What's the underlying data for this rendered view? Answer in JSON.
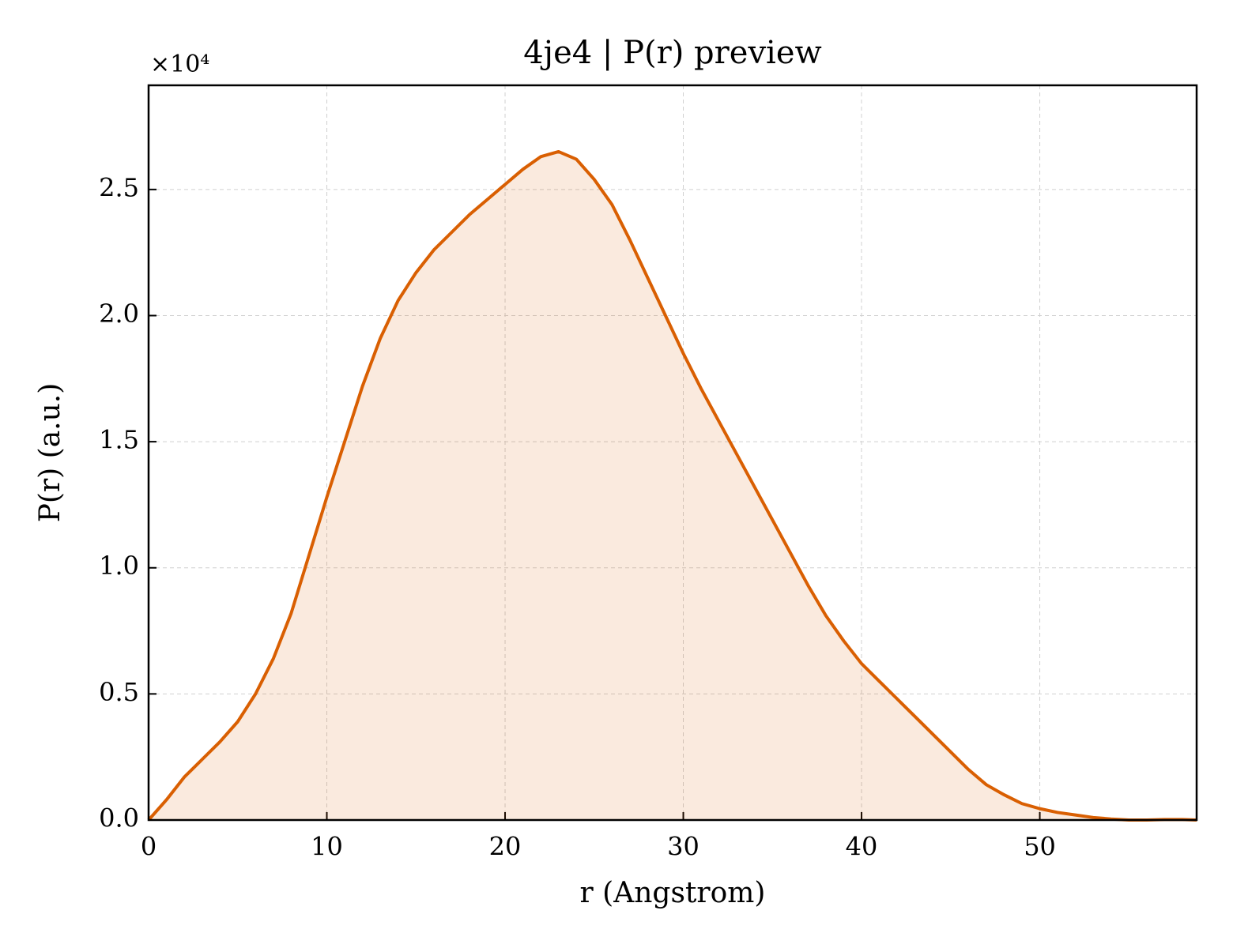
{
  "chart_data": {
    "type": "line",
    "title": "4je4 | P(r) preview",
    "x_label": "r (Angstrom)",
    "y_label": "P(r) (a.u.)",
    "y_offset_label": "×10⁴",
    "x": [
      0,
      1,
      2,
      3,
      4,
      5,
      6,
      7,
      8,
      9,
      10,
      11,
      12,
      13,
      14,
      15,
      16,
      17,
      18,
      19,
      20,
      21,
      22,
      23,
      24,
      25,
      26,
      27,
      28,
      29,
      30,
      31,
      32,
      33,
      34,
      35,
      36,
      37,
      38,
      39,
      40,
      41,
      42,
      43,
      44,
      45,
      46,
      47,
      48,
      49,
      50,
      51,
      52,
      53,
      54,
      55,
      56,
      57,
      58,
      58.8
    ],
    "series": [
      {
        "name": "P(r)",
        "color": "#d95f02",
        "fill": true,
        "values": [
          0,
          800,
          1700,
          2400,
          3100,
          3900,
          5000,
          6400,
          8200,
          10500,
          12800,
          15000,
          17200,
          19100,
          20600,
          21700,
          22600,
          23300,
          24000,
          24600,
          25200,
          25800,
          26300,
          26500,
          26200,
          25400,
          24400,
          23000,
          21500,
          20000,
          18500,
          17100,
          15800,
          14500,
          13200,
          11900,
          10600,
          9300,
          8100,
          7100,
          6200,
          5500,
          4800,
          4100,
          3400,
          2700,
          2000,
          1400,
          1000,
          650,
          450,
          300,
          200,
          100,
          40,
          0,
          0,
          20,
          20,
          0
        ]
      }
    ],
    "xlim": [
      0,
      58.8
    ],
    "xticks": [
      0,
      10,
      20,
      30,
      40,
      50
    ],
    "ylim": [
      0,
      29130
    ],
    "yticks": [
      {
        "value": 0,
        "label": "0.0"
      },
      {
        "value": 5000,
        "label": "0.5"
      },
      {
        "value": 10000,
        "label": "1.0"
      },
      {
        "value": 15000,
        "label": "1.5"
      },
      {
        "value": 20000,
        "label": "2.0"
      },
      {
        "value": 25000,
        "label": "2.5"
      }
    ],
    "grid": true
  }
}
